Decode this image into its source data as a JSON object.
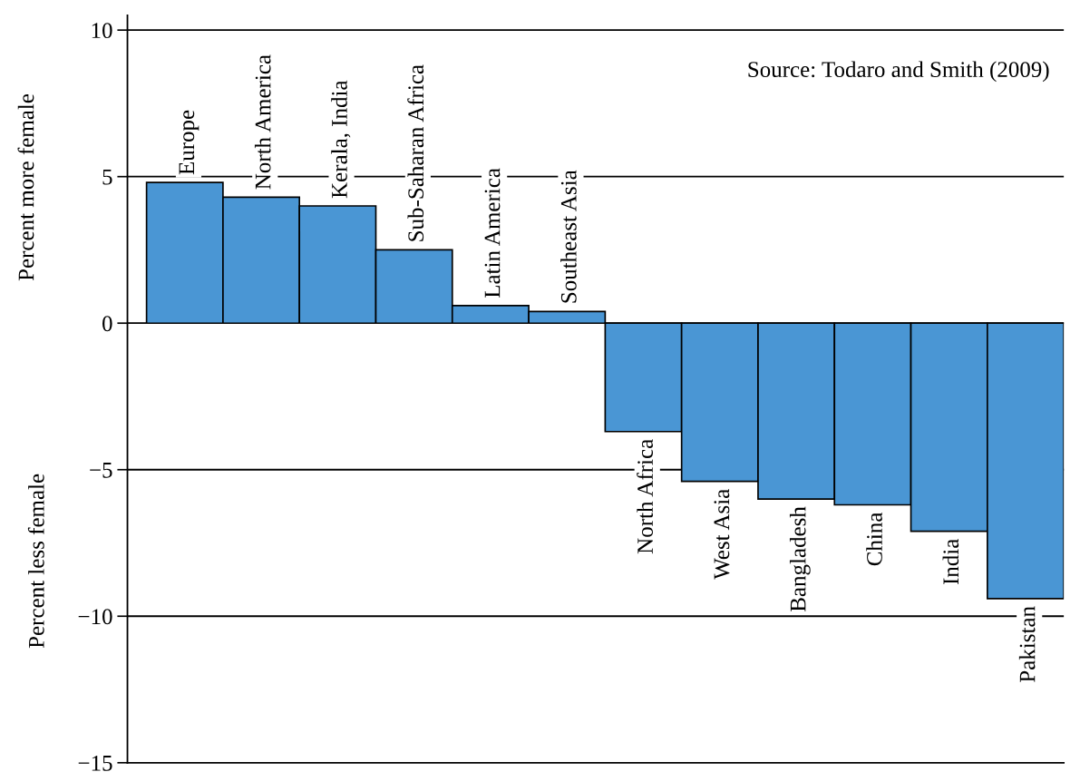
{
  "chart_data": {
    "type": "bar",
    "ylabel": "Percent more female",
    "categories": [
      "Europe",
      "North America",
      "Kerala, India",
      "Sub-Saharan Africa",
      "Latin America",
      "Southeast Asia",
      "North Africa",
      "West Asia",
      "Bangladesh",
      "China",
      "India",
      "Pakistan"
    ],
    "values": [
      4.8,
      4.3,
      4.0,
      2.5,
      0.6,
      0.4,
      -3.7,
      -5.4,
      -6.0,
      -6.2,
      -7.1,
      -9.4
    ],
    "color": "#4a96d4",
    "ylim": [
      -15,
      10.5
    ],
    "yticks": [
      {
        "value": -15,
        "label": "−15"
      },
      {
        "value": -10,
        "label": "−10"
      },
      {
        "value": -5,
        "label": "−5"
      },
      0,
      5,
      10
    ],
    "grid": "y",
    "tick_labels": "y",
    "annotations": [
      "Source: Todaro and Smith (2009)",
      "Percent less female"
    ]
  }
}
